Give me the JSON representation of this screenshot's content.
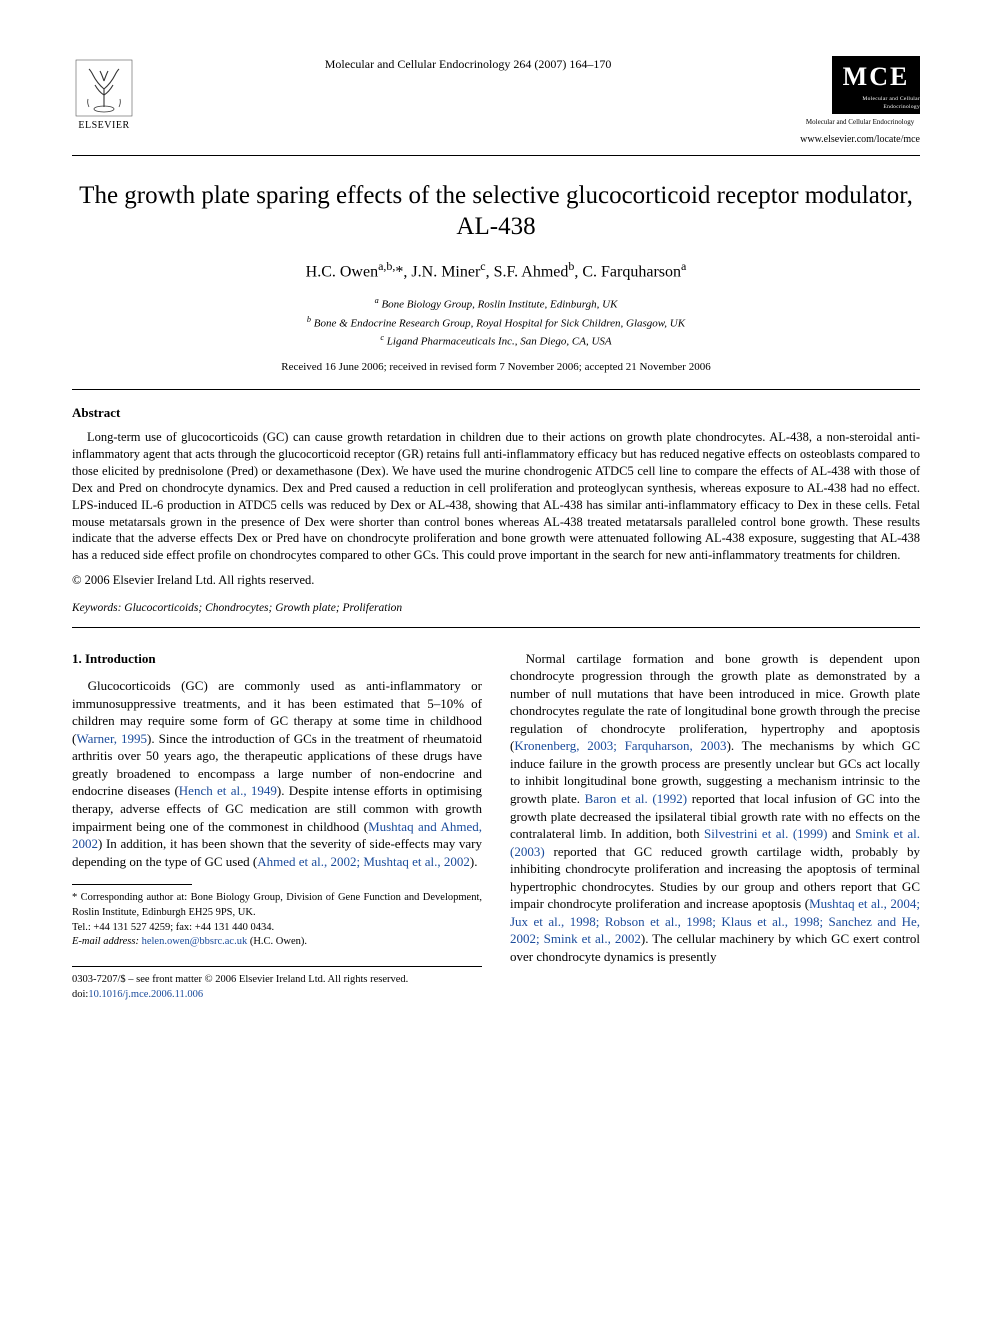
{
  "header": {
    "publisher_name": "ELSEVIER",
    "journal_reference": "Molecular and Cellular Endocrinology 264 (2007) 164–170",
    "journal_logo_big": "MCE",
    "journal_logo_small": "Molecular and Cellular Endocrinology",
    "journal_logo_sub": "Molecular and Cellular Endocrinology",
    "journal_url": "www.elsevier.com/locate/mce"
  },
  "title": "The growth plate sparing effects of the selective glucocorticoid receptor modulator, AL-438",
  "authors_html": "H.C. Owen<sup>a,b,</sup>*, J.N. Miner<sup>c</sup>, S.F. Ahmed<sup>b</sup>, C. Farquharson<sup>a</sup>",
  "affiliations": {
    "a": "Bone Biology Group, Roslin Institute, Edinburgh, UK",
    "b": "Bone & Endocrine Research Group, Royal Hospital for Sick Children, Glasgow, UK",
    "c": "Ligand Pharmaceuticals Inc., San Diego, CA, USA"
  },
  "dates": "Received 16 June 2006; received in revised form 7 November 2006; accepted 21 November 2006",
  "abstract_heading": "Abstract",
  "abstract_text": "Long-term use of glucocorticoids (GC) can cause growth retardation in children due to their actions on growth plate chondrocytes. AL-438, a non-steroidal anti-inflammatory agent that acts through the glucocorticoid receptor (GR) retains full anti-inflammatory efficacy but has reduced negative effects on osteoblasts compared to those elicited by prednisolone (Pred) or dexamethasone (Dex). We have used the murine chondrogenic ATDC5 cell line to compare the effects of AL-438 with those of Dex and Pred on chondrocyte dynamics. Dex and Pred caused a reduction in cell proliferation and proteoglycan synthesis, whereas exposure to AL-438 had no effect. LPS-induced IL-6 production in ATDC5 cells was reduced by Dex or AL-438, showing that AL-438 has similar anti-inflammatory efficacy to Dex in these cells. Fetal mouse metatarsals grown in the presence of Dex were shorter than control bones whereas AL-438 treated metatarsals paralleled control bone growth. These results indicate that the adverse effects Dex or Pred have on chondrocyte proliferation and bone growth were attenuated following AL-438 exposure, suggesting that AL-438 has a reduced side effect profile on chondrocytes compared to other GCs. This could prove important in the search for new anti-inflammatory treatments for children.",
  "copyright": "© 2006 Elsevier Ireland Ltd. All rights reserved.",
  "keywords_label": "Keywords:",
  "keywords": "Glucocorticoids; Chondrocytes; Growth plate; Proliferation",
  "introduction_heading": "1. Introduction",
  "body": {
    "col1_p1_a": "Glucocorticoids (GC) are commonly used as anti-inflammatory or immunosuppressive treatments, and it has been estimated that 5–10% of children may require some form of GC therapy at some time in childhood (",
    "col1_ref1": "Warner, 1995",
    "col1_p1_b": "). Since the introduction of GCs in the treatment of rheumatoid arthritis over 50 years ago, the therapeutic applications of these drugs have greatly broadened to encompass a large number of non-endocrine and endocrine diseases (",
    "col1_ref2": "Hench et al., 1949",
    "col1_p1_c": "). Despite intense efforts in optimising therapy, adverse effects of GC medication are still common with growth impairment being one of the commonest in childhood (",
    "col1_ref3": "Mushtaq and Ahmed, 2002",
    "col1_p1_d": ") In addition, it has been shown that the severity of side-effects may vary depending on the type of GC used (",
    "col1_ref4": "Ahmed et al., 2002; Mushtaq et al., 2002",
    "col1_p1_e": ").",
    "col2_p1_a": "Normal cartilage formation and bone growth is dependent upon chondrocyte progression through the growth plate as demonstrated by a number of null mutations that have been introduced in mice. Growth plate chondrocytes regulate the rate of longitudinal bone growth through the precise regulation of chondrocyte proliferation, hypertrophy and apoptosis (",
    "col2_ref1": "Kronenberg, 2003; Farquharson, 2003",
    "col2_p1_b": "). The mechanisms by which GC induce failure in the growth process are presently unclear but GCs act locally to inhibit longitudinal bone growth, suggesting a mechanism intrinsic to the growth plate. ",
    "col2_ref2": "Baron et al. (1992)",
    "col2_p1_c": " reported that local infusion of GC into the growth plate decreased the ipsilateral tibial growth rate with no effects on the contralateral limb. In addition, both ",
    "col2_ref3": "Silvestrini et al. (1999)",
    "col2_p1_d": " and ",
    "col2_ref4": "Smink et al. (2003)",
    "col2_p1_e": " reported that GC reduced growth cartilage width, probably by inhibiting chondrocyte proliferation and increasing the apoptosis of terminal hypertrophic chondrocytes. Studies by our group and others report that GC impair chondrocyte proliferation and increase apoptosis (",
    "col2_ref5": "Mushtaq et al., 2004; Jux et al., 1998; Robson et al., 1998; Klaus et al., 1998; Sanchez and He, 2002; Smink et al., 2002",
    "col2_p1_f": "). The cellular machinery by which GC exert control over chondrocyte dynamics is presently"
  },
  "footnote": {
    "corr": "* Corresponding author at: Bone Biology Group, Division of Gene Function and Development, Roslin Institute, Edinburgh EH25 9PS, UK.",
    "tel": "Tel.: +44 131 527 4259; fax: +44 131 440 0434.",
    "email_label": "E-mail address:",
    "email": "helen.owen@bbsrc.ac.uk",
    "email_tail": " (H.C. Owen)."
  },
  "footer": {
    "line1": "0303-7207/$ – see front matter © 2006 Elsevier Ireland Ltd. All rights reserved.",
    "doi_label": "doi:",
    "doi": "10.1016/j.mce.2006.11.006"
  }
}
